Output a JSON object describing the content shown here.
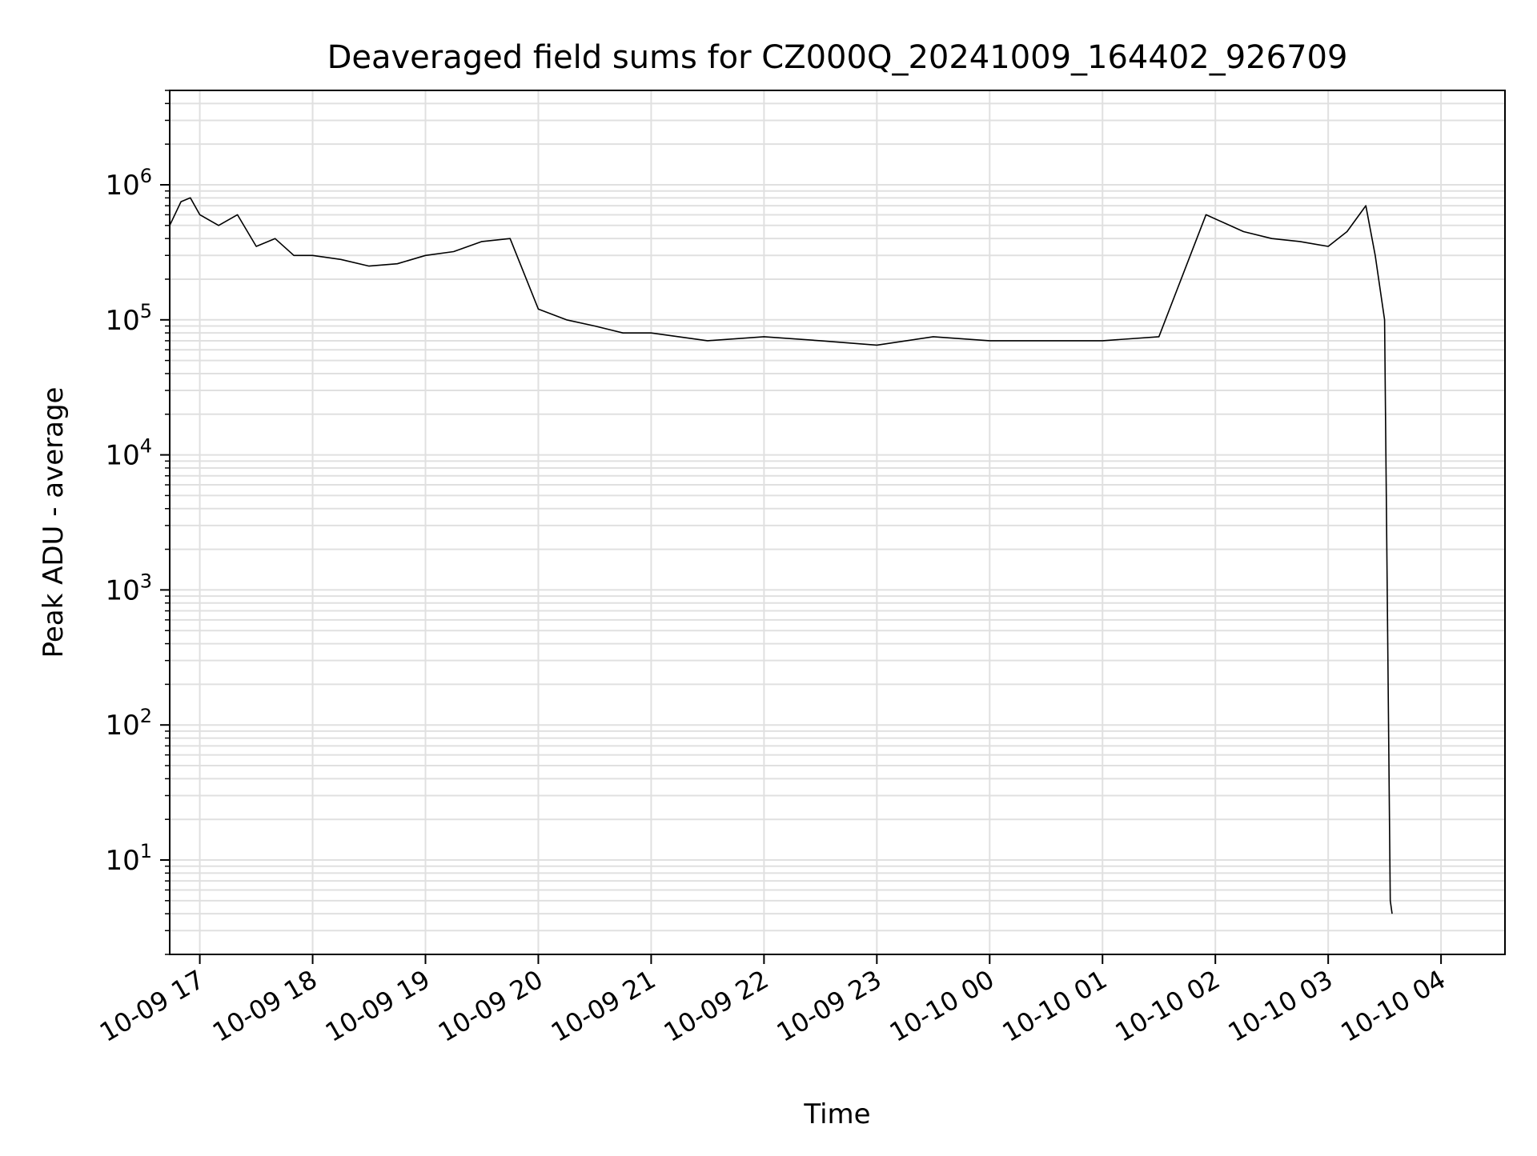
{
  "chart_data": {
    "type": "line",
    "title": "Deaveraged field sums for CZ000Q_20241009_164402_926709",
    "xlabel": "Time",
    "ylabel": "Peak ADU - average",
    "yscale": "log",
    "ylim": [
      2,
      5000000
    ],
    "xlim": [
      "2024-10-09 16:44",
      "2024-10-10 04:34"
    ],
    "grid": true,
    "legend": "none",
    "colors": {
      "line": "#000000",
      "grid": "#e0e0e0",
      "axes": "#000000"
    },
    "x_ticks": [
      {
        "t": "2024-10-09 17:00",
        "label": "10-09 17"
      },
      {
        "t": "2024-10-09 18:00",
        "label": "10-09 18"
      },
      {
        "t": "2024-10-09 19:00",
        "label": "10-09 19"
      },
      {
        "t": "2024-10-09 20:00",
        "label": "10-09 20"
      },
      {
        "t": "2024-10-09 21:00",
        "label": "10-09 21"
      },
      {
        "t": "2024-10-09 22:00",
        "label": "10-09 22"
      },
      {
        "t": "2024-10-09 23:00",
        "label": "10-09 23"
      },
      {
        "t": "2024-10-10 00:00",
        "label": "10-10 00"
      },
      {
        "t": "2024-10-10 01:00",
        "label": "10-10 01"
      },
      {
        "t": "2024-10-10 02:00",
        "label": "10-10 02"
      },
      {
        "t": "2024-10-10 03:00",
        "label": "10-10 03"
      },
      {
        "t": "2024-10-10 04:00",
        "label": "10-10 04"
      }
    ],
    "y_ticks": [
      {
        "value": 10,
        "base": "10",
        "exp": "1"
      },
      {
        "value": 100,
        "base": "10",
        "exp": "2"
      },
      {
        "value": 1000,
        "base": "10",
        "exp": "3"
      },
      {
        "value": 10000,
        "base": "10",
        "exp": "4"
      },
      {
        "value": 100000,
        "base": "10",
        "exp": "5"
      },
      {
        "value": 1000000,
        "base": "10",
        "exp": "6"
      }
    ],
    "series": [
      {
        "x": [
          "2024-10-09 16:44",
          "2024-10-09 16:50",
          "2024-10-09 16:55",
          "2024-10-09 17:00",
          "2024-10-09 17:10",
          "2024-10-09 17:20",
          "2024-10-09 17:30",
          "2024-10-09 17:40",
          "2024-10-09 17:50",
          "2024-10-09 18:00",
          "2024-10-09 18:15",
          "2024-10-09 18:30",
          "2024-10-09 18:45",
          "2024-10-09 19:00",
          "2024-10-09 19:15",
          "2024-10-09 19:30",
          "2024-10-09 19:45",
          "2024-10-09 20:00",
          "2024-10-09 20:15",
          "2024-10-09 20:30",
          "2024-10-09 20:45",
          "2024-10-09 21:00",
          "2024-10-09 21:30",
          "2024-10-09 22:00",
          "2024-10-09 22:30",
          "2024-10-09 23:00",
          "2024-10-09 23:30",
          "2024-10-10 00:00",
          "2024-10-10 00:30",
          "2024-10-10 01:00",
          "2024-10-10 01:30",
          "2024-10-10 01:55",
          "2024-10-10 02:15",
          "2024-10-10 02:30",
          "2024-10-10 02:45",
          "2024-10-10 03:00",
          "2024-10-10 03:10",
          "2024-10-10 03:20",
          "2024-10-10 03:25",
          "2024-10-10 03:30",
          "2024-10-10 03:33",
          "2024-10-10 03:34"
        ],
        "y": [
          500000,
          750000,
          800000,
          600000,
          500000,
          600000,
          350000,
          400000,
          300000,
          300000,
          280000,
          250000,
          260000,
          300000,
          320000,
          380000,
          400000,
          120000,
          100000,
          90000,
          80000,
          80000,
          70000,
          75000,
          70000,
          65000,
          75000,
          70000,
          70000,
          70000,
          75000,
          600000,
          450000,
          400000,
          380000,
          350000,
          450000,
          700000,
          300000,
          100000,
          5,
          4
        ]
      }
    ]
  }
}
